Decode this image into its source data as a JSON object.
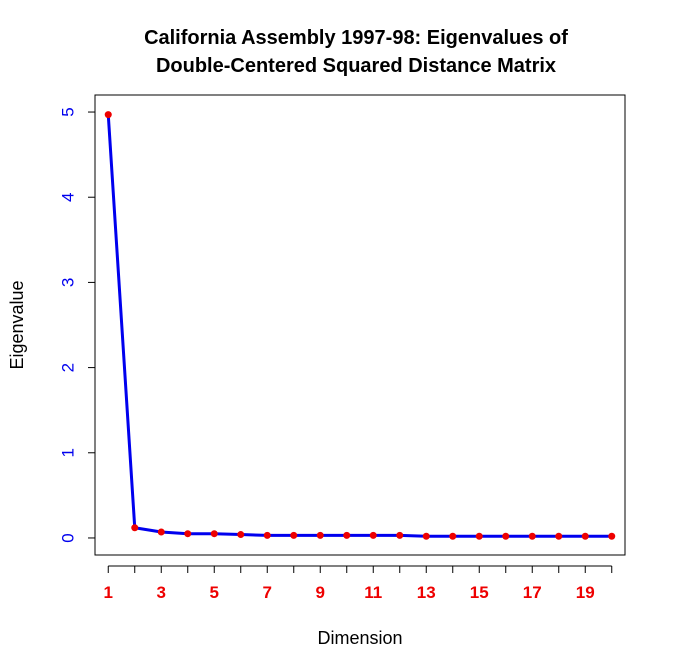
{
  "chart_data": {
    "type": "line",
    "title_lines": [
      "California Assembly 1997-98: Eigenvalues of",
      "Double-Centered Squared Distance Matrix"
    ],
    "xlabel": "Dimension",
    "ylabel": "Eigenvalue",
    "x": [
      1,
      2,
      3,
      4,
      5,
      6,
      7,
      8,
      9,
      10,
      11,
      12,
      13,
      14,
      15,
      16,
      17,
      18,
      19,
      20
    ],
    "series": [
      {
        "name": "Eigenvalue",
        "values": [
          4.97,
          0.12,
          0.07,
          0.05,
          0.05,
          0.04,
          0.03,
          0.03,
          0.03,
          0.03,
          0.03,
          0.03,
          0.02,
          0.02,
          0.02,
          0.02,
          0.02,
          0.02,
          0.02,
          0.02
        ]
      }
    ],
    "x_ticks": [
      1,
      2,
      3,
      4,
      5,
      6,
      7,
      8,
      9,
      10,
      11,
      12,
      13,
      14,
      15,
      16,
      17,
      18,
      19,
      20
    ],
    "x_tick_labels": [
      "1",
      "3",
      "5",
      "7",
      "9",
      "11",
      "13",
      "15",
      "17",
      "19"
    ],
    "y_ticks": [
      0,
      1,
      2,
      3,
      4,
      5
    ],
    "y_tick_labels": [
      "0",
      "1",
      "2",
      "3",
      "4",
      "5"
    ],
    "xlim": [
      0.5,
      20.5
    ],
    "ylim": [
      -0.2,
      5.2
    ],
    "grid": false,
    "legend": "none",
    "colors": {
      "line": "#0000ee",
      "points": "#ee0000",
      "x_tick_labels": "#ee0000",
      "y_tick_labels": "#0000ee",
      "axis": "#000000"
    }
  }
}
